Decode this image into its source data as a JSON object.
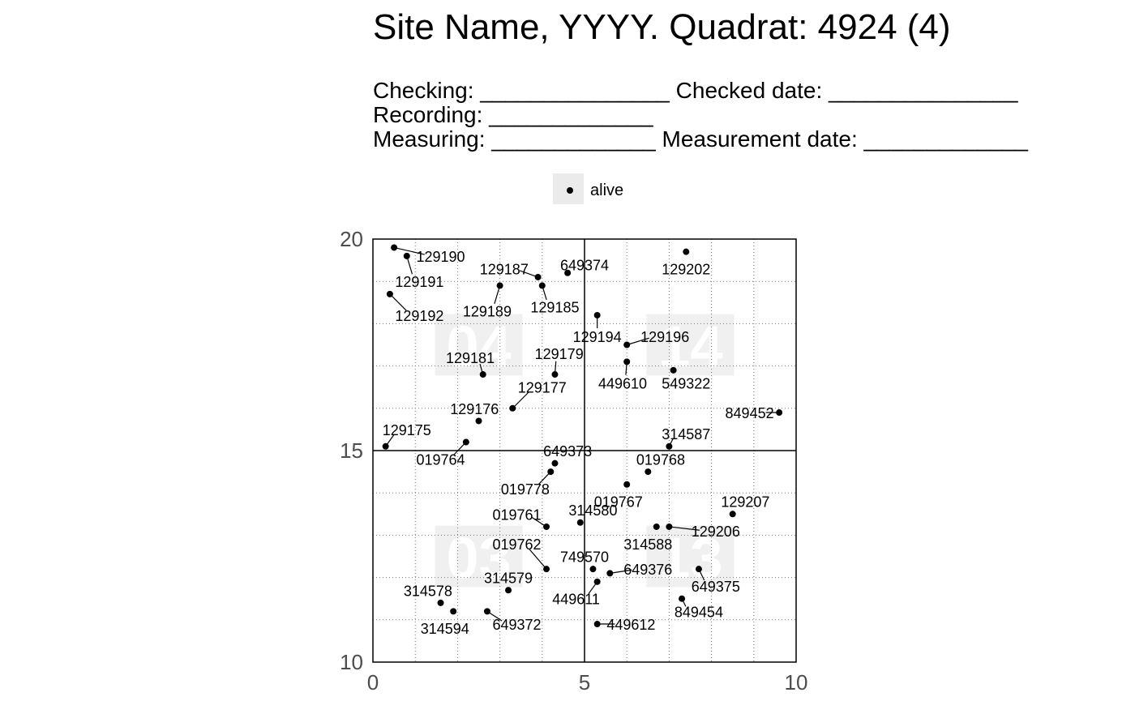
{
  "header": {
    "title": "Site Name, YYYY. Quadrat: 4924 (4)",
    "checking": "Checking: _______________ Checked date: _______________",
    "recording": "Recording: _____________",
    "measuring": "Measuring: _____________ Measurement date: _____________"
  },
  "legend": {
    "label": "alive"
  },
  "chart_data": {
    "type": "scatter",
    "title": "Site Name, YYYY. Quadrat: 4924 (4)",
    "xlabel": "",
    "ylabel": "",
    "xlim": [
      0,
      10
    ],
    "ylim": [
      10,
      20
    ],
    "x_ticks": [
      0,
      5,
      10
    ],
    "y_ticks": [
      10,
      15,
      20
    ],
    "grid": "dotted minor grid every 1 unit; solid lines at x=5 and y=15",
    "subquadrats": [
      {
        "label": "04",
        "x": 2.5,
        "y": 17.5
      },
      {
        "label": "14",
        "x": 7.5,
        "y": 17.5
      },
      {
        "label": "03",
        "x": 2.5,
        "y": 12.5
      },
      {
        "label": "13",
        "x": 7.5,
        "y": 12.5
      }
    ],
    "series": [
      {
        "name": "alive",
        "points": [
          {
            "tag": "129190",
            "x": 0.5,
            "y": 19.8,
            "lx": 1.6,
            "ly": 19.6
          },
          {
            "tag": "129191",
            "x": 0.8,
            "y": 19.6,
            "lx": 1.1,
            "ly": 19.0
          },
          {
            "tag": "129192",
            "x": 0.4,
            "y": 18.7,
            "lx": 1.1,
            "ly": 18.2
          },
          {
            "tag": "129187",
            "x": 3.9,
            "y": 19.1,
            "lx": 3.1,
            "ly": 19.3
          },
          {
            "tag": "649374",
            "x": 4.6,
            "y": 19.2,
            "lx": 5.0,
            "ly": 19.4
          },
          {
            "tag": "129202",
            "x": 7.4,
            "y": 19.7,
            "lx": 7.4,
            "ly": 19.3
          },
          {
            "tag": "129189",
            "x": 3.0,
            "y": 18.9,
            "lx": 2.7,
            "ly": 18.3
          },
          {
            "tag": "129185",
            "x": 4.0,
            "y": 18.9,
            "lx": 4.3,
            "ly": 18.4
          },
          {
            "tag": "129194",
            "x": 5.3,
            "y": 18.2,
            "lx": 5.3,
            "ly": 17.7
          },
          {
            "tag": "129196",
            "x": 6.0,
            "y": 17.5,
            "lx": 6.9,
            "ly": 17.7
          },
          {
            "tag": "449610",
            "x": 6.0,
            "y": 17.1,
            "lx": 5.9,
            "ly": 16.6
          },
          {
            "tag": "549322",
            "x": 7.1,
            "y": 16.9,
            "lx": 7.4,
            "ly": 16.6
          },
          {
            "tag": "129181",
            "x": 2.6,
            "y": 16.8,
            "lx": 2.3,
            "ly": 17.2
          },
          {
            "tag": "129179",
            "x": 4.3,
            "y": 16.8,
            "lx": 4.4,
            "ly": 17.3
          },
          {
            "tag": "129177",
            "x": 3.3,
            "y": 16.0,
            "lx": 4.0,
            "ly": 16.5
          },
          {
            "tag": "129176",
            "x": 2.5,
            "y": 15.7,
            "lx": 2.4,
            "ly": 16.0
          },
          {
            "tag": "849452",
            "x": 9.6,
            "y": 15.9,
            "lx": 8.9,
            "ly": 15.9
          },
          {
            "tag": "129175",
            "x": 0.3,
            "y": 15.1,
            "lx": 0.8,
            "ly": 15.5
          },
          {
            "tag": "019764",
            "x": 2.2,
            "y": 15.2,
            "lx": 1.6,
            "ly": 14.8
          },
          {
            "tag": "314587",
            "x": 7.0,
            "y": 15.1,
            "lx": 7.4,
            "ly": 15.4
          },
          {
            "tag": "649373",
            "x": 4.3,
            "y": 14.7,
            "lx": 4.6,
            "ly": 15.0
          },
          {
            "tag": "019768",
            "x": 6.5,
            "y": 14.5,
            "lx": 6.8,
            "ly": 14.8
          },
          {
            "tag": "019778",
            "x": 4.2,
            "y": 14.5,
            "lx": 3.6,
            "ly": 14.1
          },
          {
            "tag": "019767",
            "x": 6.0,
            "y": 14.2,
            "lx": 5.8,
            "ly": 13.8
          },
          {
            "tag": "129207",
            "x": 8.5,
            "y": 13.5,
            "lx": 8.8,
            "ly": 13.8
          },
          {
            "tag": "019761",
            "x": 4.1,
            "y": 13.2,
            "lx": 3.4,
            "ly": 13.5
          },
          {
            "tag": "314580",
            "x": 4.9,
            "y": 13.3,
            "lx": 5.2,
            "ly": 13.6
          },
          {
            "tag": "314588",
            "x": 6.7,
            "y": 13.2,
            "lx": 6.5,
            "ly": 12.8
          },
          {
            "tag": "129206",
            "x": 7.0,
            "y": 13.2,
            "lx": 8.1,
            "ly": 13.1
          },
          {
            "tag": "019762",
            "x": 4.1,
            "y": 12.2,
            "lx": 3.4,
            "ly": 12.8
          },
          {
            "tag": "749570",
            "x": 5.2,
            "y": 12.2,
            "lx": 5.0,
            "ly": 12.5
          },
          {
            "tag": "649376",
            "x": 5.6,
            "y": 12.1,
            "lx": 6.5,
            "ly": 12.2
          },
          {
            "tag": "649375",
            "x": 7.7,
            "y": 12.2,
            "lx": 8.1,
            "ly": 11.8
          },
          {
            "tag": "314579",
            "x": 3.2,
            "y": 11.7,
            "lx": 3.2,
            "ly": 12.0
          },
          {
            "tag": "449611",
            "x": 5.3,
            "y": 11.9,
            "lx": 4.8,
            "ly": 11.5
          },
          {
            "tag": "849454",
            "x": 7.3,
            "y": 11.5,
            "lx": 7.7,
            "ly": 11.2
          },
          {
            "tag": "314578",
            "x": 1.6,
            "y": 11.4,
            "lx": 1.3,
            "ly": 11.7
          },
          {
            "tag": "314594",
            "x": 1.9,
            "y": 11.2,
            "lx": 1.7,
            "ly": 10.8
          },
          {
            "tag": "649372",
            "x": 2.7,
            "y": 11.2,
            "lx": 3.4,
            "ly": 10.9
          },
          {
            "tag": "449612",
            "x": 5.3,
            "y": 10.9,
            "lx": 6.1,
            "ly": 10.9
          }
        ]
      }
    ]
  }
}
